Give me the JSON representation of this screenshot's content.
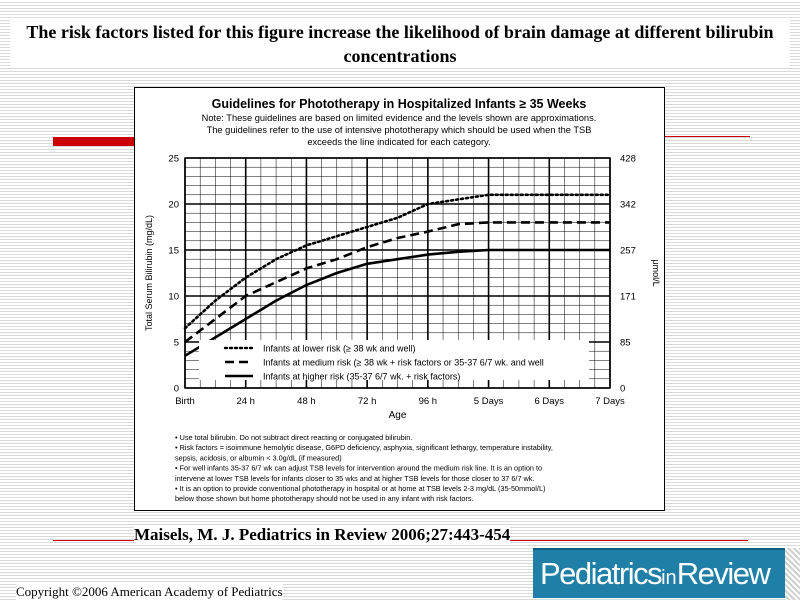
{
  "slide": {
    "title": "The risk factors listed for this figure increase the likelihood of brain damage at different bilirubin concentrations",
    "citation": "Maisels, M. J. Pediatrics in Review 2006;27:443-454",
    "copyright": "Copyright ©2006 American Academy of Pediatrics",
    "logo": {
      "part1": "Pediatrics",
      "part2": "in",
      "part3": "Review"
    }
  },
  "figure": {
    "heading": "Guidelines for Phototherapy in Hospitalized Infants ≥ 35 Weeks",
    "note_lines": [
      "Note: These guidelines are based on limited evidence and the levels shown are approximations.",
      "The guidelines refer to the use of intensive phototherapy which should be used when the TSB",
      "exceeds the line indicated for each category."
    ],
    "bullets": [
      [
        "• Use total bilirubin.  Do not subtract direct reacting or conjugated bilirubin."
      ],
      [
        "• Risk factors = isoimmune hemolytic disease, G6PD deficiency, asphyxia, significant lethargy, temperature instability,",
        "   sepsis, acidosis, or albumin < 3.0g/dL (if measured)"
      ],
      [
        "• For well infants 35-37 6/7 wk can adjust TSB levels for intervention around the medium risk line.  It is an option to",
        "   intervene at lower TSB levels for infants closer to 35 wks and at higher TSB levels for those closer to 37 6/7 wk."
      ],
      [
        "• It is an option to provide conventional phototherapy in hospital or at home at TSB levels 2-3 mg/dL (35-50mmol/L)",
        "   below those shown but home phototherapy should not be used in any infant with risk factors."
      ]
    ]
  },
  "chart_data": {
    "type": "line",
    "title": "Guidelines for Phototherapy in Hospitalized Infants ≥ 35 Weeks",
    "xlabel": "Age",
    "ylabel": "Total Serum Bilirubin (mg/dL)",
    "y2label": "μmol/L",
    "xlim": [
      0,
      168
    ],
    "ylim": [
      0,
      25
    ],
    "x_ticks": [
      0,
      24,
      48,
      72,
      96,
      120,
      144,
      168
    ],
    "x_tick_labels": [
      "Birth",
      "24 h",
      "48 h",
      "72 h",
      "96 h",
      "5 Days",
      "6 Days",
      "7 Days"
    ],
    "y_ticks": [
      0,
      5,
      10,
      15,
      20,
      25
    ],
    "y2_ticks": [
      {
        "y": 0,
        "label": "0"
      },
      {
        "y": 5,
        "label": "85"
      },
      {
        "y": 10,
        "label": "171"
      },
      {
        "y": 15,
        "label": "257"
      },
      {
        "y": 20,
        "label": "342"
      },
      {
        "y": 25,
        "label": "428"
      }
    ],
    "grid": true,
    "legend_position": "bottom-left",
    "series": [
      {
        "name": "Infants at lower risk (≥ 38 wk and well)",
        "style": "dotted",
        "x": [
          0,
          12,
          24,
          36,
          48,
          60,
          72,
          84,
          96,
          108,
          120,
          144,
          168
        ],
        "y": [
          6.5,
          9.5,
          12,
          14,
          15.5,
          16.5,
          17.5,
          18.5,
          20,
          20.5,
          21,
          21,
          21
        ]
      },
      {
        "name": "Infants at medium risk (≥ 38 wk + risk factors or 35-37 6/7 wk. and well",
        "style": "dashed",
        "x": [
          0,
          12,
          24,
          36,
          48,
          60,
          72,
          84,
          96,
          108,
          120,
          144,
          168
        ],
        "y": [
          5,
          7.5,
          10,
          11.5,
          13,
          14,
          15.3,
          16.3,
          17,
          17.8,
          18,
          18,
          18
        ]
      },
      {
        "name": "Infants at higher risk (35-37 6/7 wk. + risk factors)",
        "style": "solid",
        "x": [
          0,
          12,
          24,
          36,
          48,
          60,
          72,
          84,
          96,
          108,
          120,
          144,
          168
        ],
        "y": [
          3.5,
          5.5,
          7.5,
          9.5,
          11.2,
          12.5,
          13.5,
          14,
          14.5,
          14.8,
          15,
          15,
          15
        ]
      }
    ]
  }
}
